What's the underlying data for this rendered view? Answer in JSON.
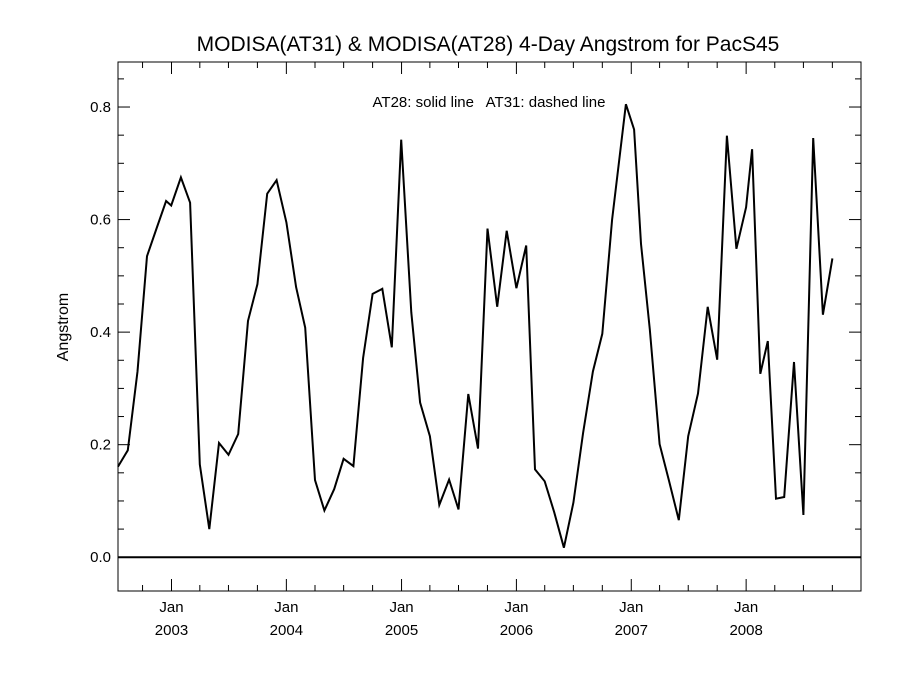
{
  "chart_data": {
    "type": "line",
    "title": "MODISA(AT31) & MODISA(AT28) 4-Day Angstrom for PacS45",
    "annotation": "AT28: solid line   AT31: dashed line",
    "xlabel": "",
    "ylabel": "Angstrom",
    "xlim": [
      "2002-07-15",
      "2008-12-31"
    ],
    "ylim": [
      -0.06,
      0.88
    ],
    "yticks": [
      0.0,
      0.2,
      0.4,
      0.6,
      0.8
    ],
    "ytick_labels": [
      "0.0",
      "0.2",
      "0.4",
      "0.6",
      "0.8"
    ],
    "xticks": [
      {
        "date": "2003-01-01",
        "month": "Jan",
        "year": "2003"
      },
      {
        "date": "2004-01-01",
        "month": "Jan",
        "year": "2004"
      },
      {
        "date": "2005-01-01",
        "month": "Jan",
        "year": "2005"
      },
      {
        "date": "2006-01-01",
        "month": "Jan",
        "year": "2006"
      },
      {
        "date": "2007-01-01",
        "month": "Jan",
        "year": "2007"
      },
      {
        "date": "2008-01-01",
        "month": "Jan",
        "year": "2008"
      }
    ],
    "reference_line": 0.0,
    "grid": false,
    "series": [
      {
        "line_style": "solid",
        "color": "#000000",
        "points": [
          [
            "2002-07-15",
            0.161
          ],
          [
            "2002-08-15",
            0.19
          ],
          [
            "2002-09-15",
            0.33
          ],
          [
            "2002-10-15",
            0.535
          ],
          [
            "2002-11-15",
            0.585
          ],
          [
            "2002-12-15",
            0.633
          ],
          [
            "2002-12-31",
            0.625
          ],
          [
            "2003-01-31",
            0.675
          ],
          [
            "2003-03-01",
            0.63
          ],
          [
            "2003-04-01",
            0.165
          ],
          [
            "2003-05-01",
            0.05
          ],
          [
            "2003-06-01",
            0.203
          ],
          [
            "2003-07-01",
            0.182
          ],
          [
            "2003-08-01",
            0.219
          ],
          [
            "2003-09-01",
            0.42
          ],
          [
            "2003-10-01",
            0.485
          ],
          [
            "2003-11-01",
            0.646
          ],
          [
            "2003-12-01",
            0.67
          ],
          [
            "2004-01-01",
            0.595
          ],
          [
            "2004-02-01",
            0.48
          ],
          [
            "2004-03-01",
            0.408
          ],
          [
            "2004-04-01",
            0.137
          ],
          [
            "2004-05-01",
            0.083
          ],
          [
            "2004-06-01",
            0.121
          ],
          [
            "2004-07-01",
            0.175
          ],
          [
            "2004-08-01",
            0.162
          ],
          [
            "2004-09-01",
            0.354
          ],
          [
            "2004-10-01",
            0.468
          ],
          [
            "2004-11-01",
            0.477
          ],
          [
            "2004-12-01",
            0.373
          ],
          [
            "2004-12-31",
            0.742
          ],
          [
            "2005-02-01",
            0.435
          ],
          [
            "2005-03-01",
            0.275
          ],
          [
            "2005-04-01",
            0.215
          ],
          [
            "2005-05-01",
            0.093
          ],
          [
            "2005-06-01",
            0.138
          ],
          [
            "2005-07-01",
            0.085
          ],
          [
            "2005-08-01",
            0.29
          ],
          [
            "2005-09-01",
            0.193
          ],
          [
            "2005-10-01",
            0.584
          ],
          [
            "2005-11-01",
            0.445
          ],
          [
            "2005-12-01",
            0.58
          ],
          [
            "2006-01-01",
            0.478
          ],
          [
            "2006-02-01",
            0.554
          ],
          [
            "2006-03-01",
            0.156
          ],
          [
            "2006-04-01",
            0.135
          ],
          [
            "2006-05-01",
            0.08
          ],
          [
            "2006-06-01",
            0.017
          ],
          [
            "2006-07-01",
            0.097
          ],
          [
            "2006-08-01",
            0.221
          ],
          [
            "2006-09-01",
            0.33
          ],
          [
            "2006-10-01",
            0.397
          ],
          [
            "2006-11-01",
            0.6
          ],
          [
            "2006-12-15",
            0.805
          ],
          [
            "2007-01-10",
            0.76
          ],
          [
            "2007-02-01",
            0.557
          ],
          [
            "2007-03-01",
            0.405
          ],
          [
            "2007-04-01",
            0.201
          ],
          [
            "2007-05-01",
            0.136
          ],
          [
            "2007-06-01",
            0.066
          ],
          [
            "2007-07-01",
            0.215
          ],
          [
            "2007-08-01",
            0.291
          ],
          [
            "2007-09-01",
            0.445
          ],
          [
            "2007-10-01",
            0.351
          ],
          [
            "2007-11-01",
            0.749
          ],
          [
            "2007-12-01",
            0.548
          ],
          [
            "2008-01-01",
            0.622
          ],
          [
            "2008-01-20",
            0.725
          ],
          [
            "2008-02-15",
            0.326
          ],
          [
            "2008-03-10",
            0.384
          ],
          [
            "2008-04-05",
            0.104
          ],
          [
            "2008-05-01",
            0.107
          ],
          [
            "2008-06-01",
            0.347
          ],
          [
            "2008-07-01",
            0.075
          ],
          [
            "2008-08-01",
            0.745
          ],
          [
            "2008-09-01",
            0.431
          ],
          [
            "2008-10-01",
            0.531
          ]
        ]
      }
    ]
  }
}
